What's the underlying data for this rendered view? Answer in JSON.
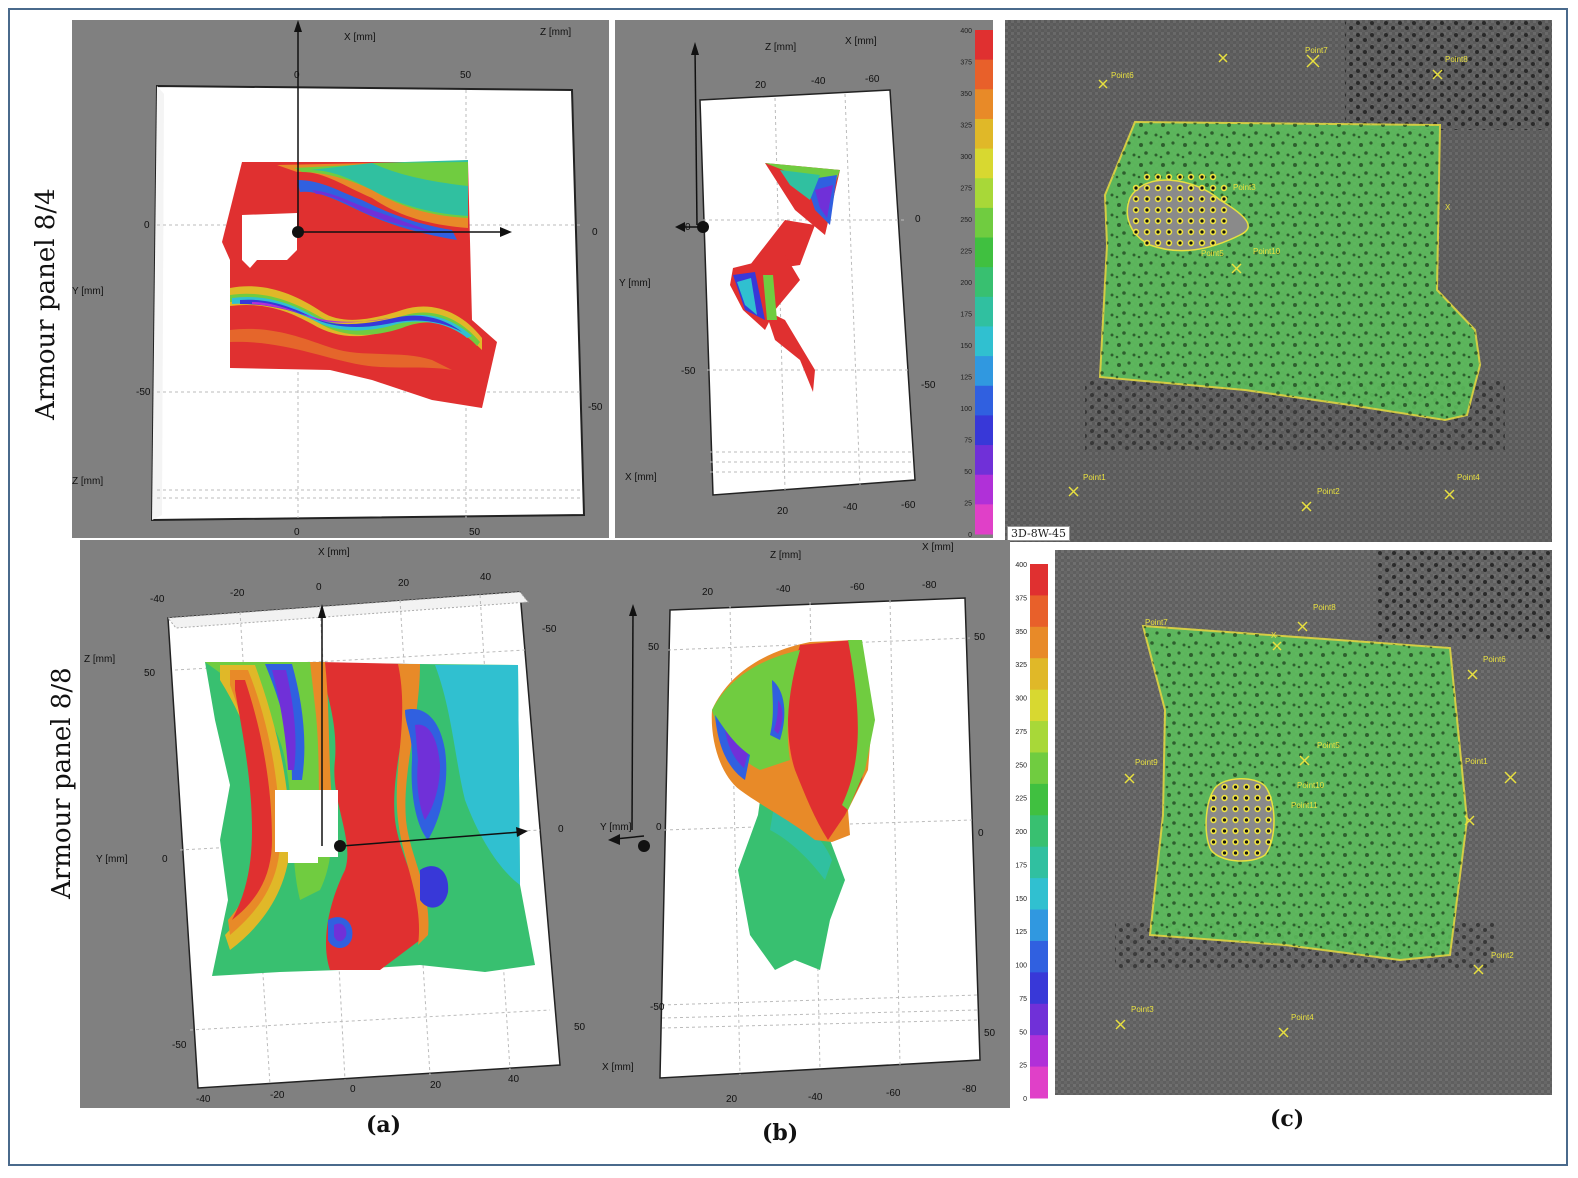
{
  "row_labels": [
    "Armour panel 8/4",
    "Armour panel 8/8"
  ],
  "captions": [
    "(a)",
    "(b)",
    "(c)"
  ],
  "axis_labels": {
    "x": "X [mm]",
    "y": "Y [mm]",
    "z": "Z [mm]"
  },
  "ticks": {
    "a1_top": [
      "0",
      "50"
    ],
    "a1_left": [
      "0",
      "-50"
    ],
    "a1_bottom": [
      "0",
      "50"
    ],
    "a1_right": [
      "0",
      "-50"
    ],
    "b1_top": [
      "20",
      "-40",
      "-60"
    ],
    "b1_left": [
      "0",
      "-50"
    ],
    "b1_bottom": [
      "20",
      "-40",
      "-60"
    ],
    "b1_right": [
      "0",
      "-50"
    ],
    "a2_top": [
      "-40",
      "-20",
      "0",
      "20",
      "40"
    ],
    "a2_left": [
      "50",
      "0",
      "-50"
    ],
    "a2_bottom": [
      "-40",
      "-20",
      "0",
      "20",
      "40"
    ],
    "a2_right": [
      "-50",
      "0",
      "50"
    ],
    "b2_top": [
      "20",
      "-40",
      "-60",
      "-80"
    ],
    "b2_left": [
      "50",
      "0",
      "-50"
    ],
    "b2_bottom": [
      "20",
      "-40",
      "-60",
      "-80"
    ],
    "b2_right": [
      "50",
      "0",
      "50"
    ]
  },
  "colorbar": {
    "ticks": [
      "400",
      "375",
      "350",
      "325",
      "300",
      "275",
      "250",
      "225",
      "200",
      "175",
      "150",
      "125",
      "100",
      "75",
      "50",
      "25",
      "0"
    ],
    "colors": [
      "#e03030",
      "#e8602a",
      "#e88a28",
      "#e0b828",
      "#d8d830",
      "#a8d838",
      "#70cc40",
      "#40c040",
      "#38c070",
      "#30c0a0",
      "#30c0d0",
      "#3098e0",
      "#3060e0",
      "#3838d8",
      "#7030d8",
      "#b030d8",
      "#e040c8"
    ]
  },
  "photo_points_top": [
    "Point6",
    "Point7",
    "Point8",
    "Point3",
    "Point5",
    "Point10",
    "Point1",
    "Point2",
    "Point4",
    "X"
  ],
  "photo_points_bottom": [
    "Point8",
    "Point7",
    "Point6",
    "Point9",
    "Point5",
    "Point10",
    "Point11",
    "Point1",
    "Point2",
    "Point4",
    "Point3",
    "Point8",
    "X"
  ],
  "photo_badge": "3D-8W-45"
}
